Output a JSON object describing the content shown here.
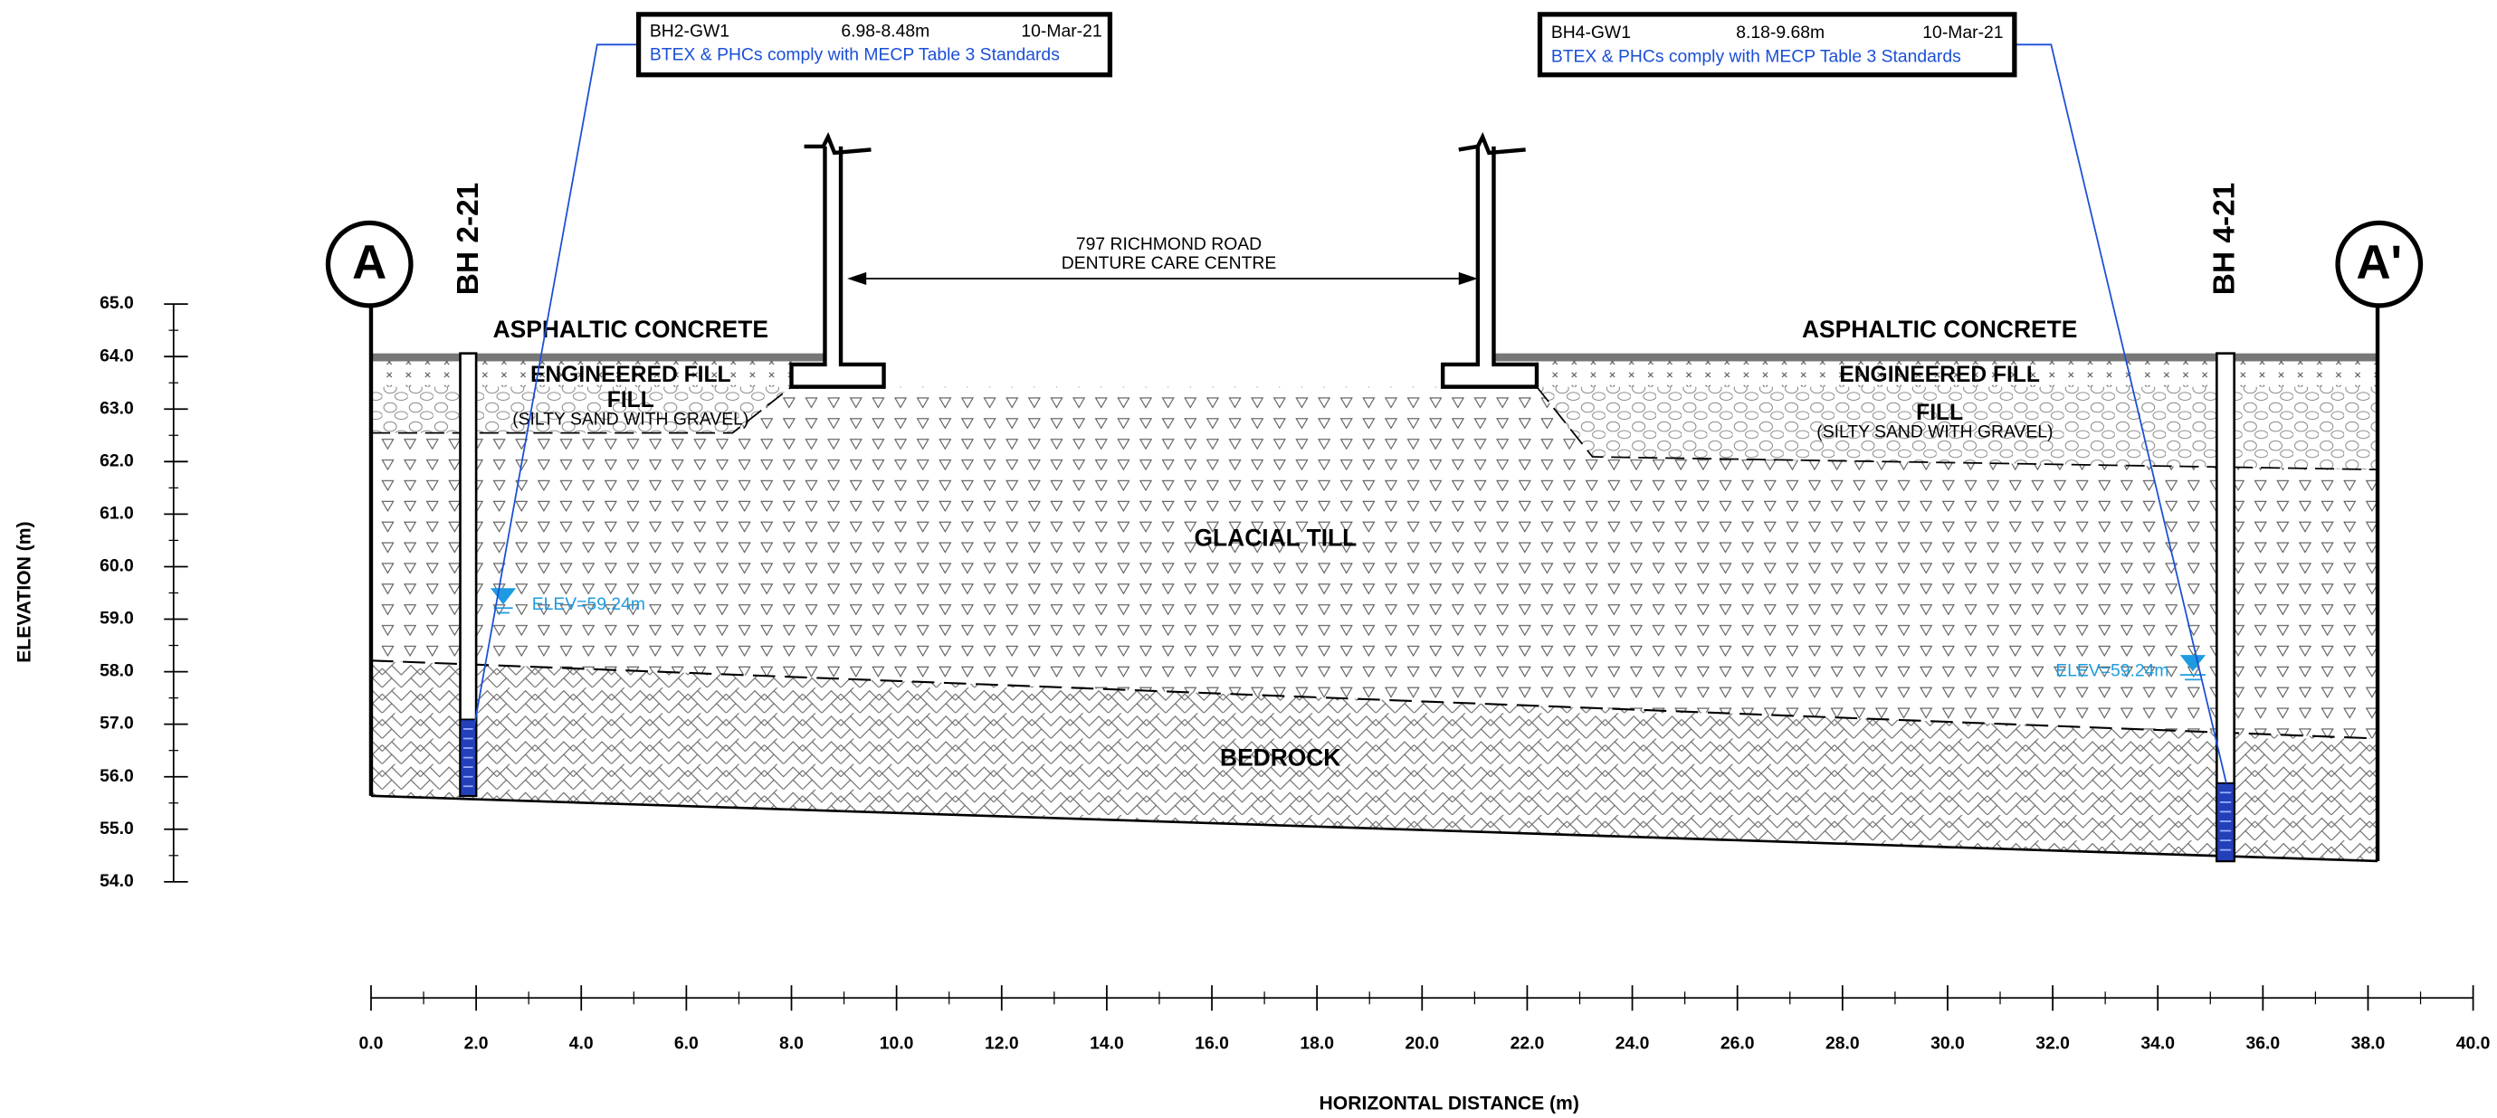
{
  "section_markers": {
    "left": "A",
    "right": "A'"
  },
  "boreholes": [
    {
      "label": "BH 2-21",
      "water_level": "ELEV=59.24m"
    },
    {
      "label": "BH 4-21",
      "water_level": "ELEV=59.24m"
    }
  ],
  "callouts": [
    {
      "sample": "BH2-GW1",
      "depth": "6.98-8.48m",
      "date": "10-Mar-21",
      "result": "BTEX & PHCs comply with MECP Table 3 Standards"
    },
    {
      "sample": "BH4-GW1",
      "depth": "8.18-9.68m",
      "date": "10-Mar-21",
      "result": "BTEX & PHCs comply with MECP Table 3 Standards"
    }
  ],
  "building": {
    "address": "797 RICHMOND ROAD",
    "name": "DENTURE CARE CENTRE"
  },
  "layers": {
    "asphalt": "ASPHALTIC CONCRETE",
    "engineered_fill": "ENGINEERED FILL",
    "fill": "FILL",
    "fill_description": "(SILTY SAND WITH GRAVEL)",
    "till": "GLACIAL TILL",
    "bedrock": "BEDROCK"
  },
  "y_axis": {
    "title": "ELEVATION (m)",
    "ticks": [
      "65.0",
      "64.0",
      "63.0",
      "62.0",
      "61.0",
      "60.0",
      "59.0",
      "58.0",
      "57.0",
      "56.0",
      "55.0",
      "54.0"
    ]
  },
  "x_axis": {
    "title": "HORIZONTAL DISTANCE (m)",
    "ticks": [
      "0.0",
      "2.0",
      "4.0",
      "6.0",
      "8.0",
      "10.0",
      "12.0",
      "14.0",
      "16.0",
      "18.0",
      "20.0",
      "22.0",
      "24.0",
      "26.0",
      "28.0",
      "30.0",
      "32.0",
      "34.0",
      "36.0",
      "38.0",
      "40.0"
    ]
  }
}
